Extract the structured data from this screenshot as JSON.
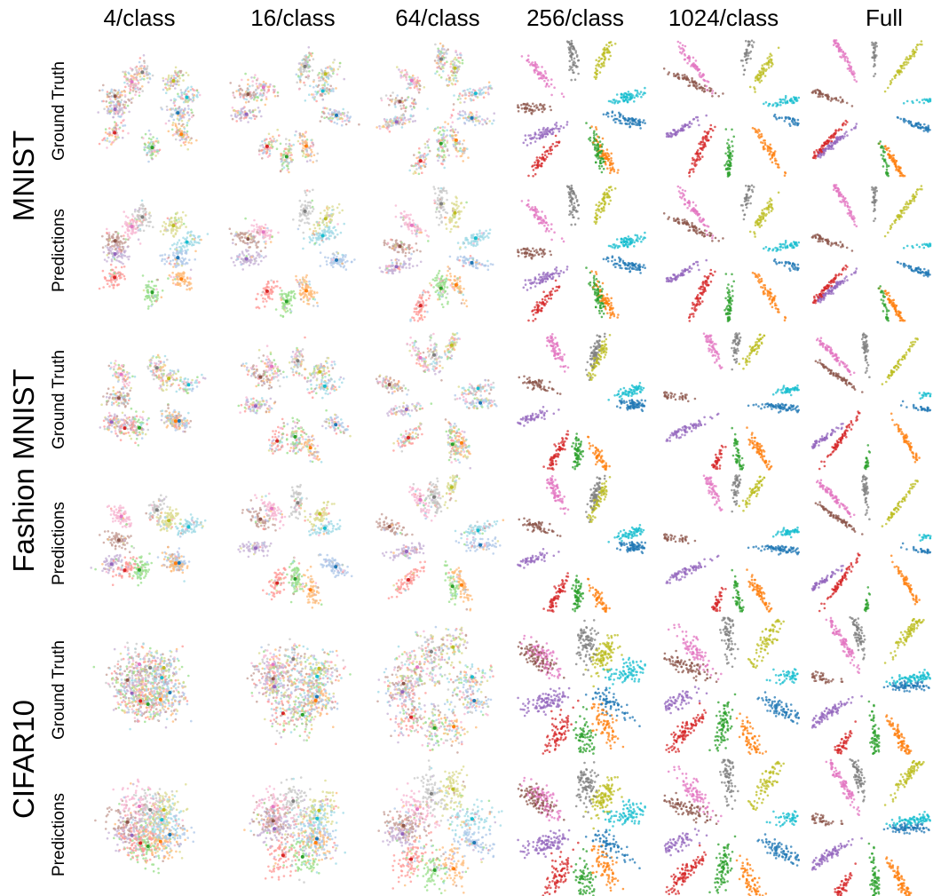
{
  "figure": {
    "columns": [
      "4/class",
      "16/class",
      "64/class",
      "256/class",
      "1024/class",
      "Full"
    ],
    "row_labels": [
      "Ground Truth",
      "Predictions"
    ],
    "datasets": [
      "MNIST",
      "Fashion MNIST",
      "CIFAR10"
    ]
  },
  "colors": {
    "palette": [
      "#1f77b4",
      "#ff7f0e",
      "#2ca02c",
      "#d62728",
      "#9467bd",
      "#8c564b",
      "#e377c2",
      "#7f7f7f",
      "#bcbd22",
      "#17becf"
    ],
    "palette_light": [
      "#aec7e8",
      "#ffbb78",
      "#98df8a",
      "#ff9896",
      "#c5b0d5",
      "#c49c94",
      "#f7b6d2",
      "#c7c7c7",
      "#dbdb8d",
      "#9edae5"
    ]
  },
  "chart_data": {
    "type": "scatter",
    "description_grid": "3 datasets x 2 rows (Ground Truth, Predictions) x 6 label budgets; each panel is a 2D embedding scatter of points colored by one of 10 classes",
    "grid": {
      "rows": 6,
      "cols": 6
    },
    "num_classes": 10,
    "panels": [
      {
        "dataset": "MNIST",
        "row": "Ground Truth",
        "column": "4/class",
        "seed": 11
      },
      {
        "dataset": "MNIST",
        "row": "Ground Truth",
        "column": "16/class",
        "seed": 12
      },
      {
        "dataset": "MNIST",
        "row": "Ground Truth",
        "column": "64/class",
        "seed": 13
      },
      {
        "dataset": "MNIST",
        "row": "Ground Truth",
        "column": "256/class",
        "seed": 14
      },
      {
        "dataset": "MNIST",
        "row": "Ground Truth",
        "column": "1024/class",
        "seed": 15
      },
      {
        "dataset": "MNIST",
        "row": "Ground Truth",
        "column": "Full",
        "seed": 16
      },
      {
        "dataset": "MNIST",
        "row": "Predictions",
        "column": "4/class",
        "seed": 11
      },
      {
        "dataset": "MNIST",
        "row": "Predictions",
        "column": "16/class",
        "seed": 12
      },
      {
        "dataset": "MNIST",
        "row": "Predictions",
        "column": "64/class",
        "seed": 13
      },
      {
        "dataset": "MNIST",
        "row": "Predictions",
        "column": "256/class",
        "seed": 14
      },
      {
        "dataset": "MNIST",
        "row": "Predictions",
        "column": "1024/class",
        "seed": 15
      },
      {
        "dataset": "MNIST",
        "row": "Predictions",
        "column": "Full",
        "seed": 16
      },
      {
        "dataset": "Fashion MNIST",
        "row": "Ground Truth",
        "column": "4/class",
        "seed": 21
      },
      {
        "dataset": "Fashion MNIST",
        "row": "Ground Truth",
        "column": "16/class",
        "seed": 22
      },
      {
        "dataset": "Fashion MNIST",
        "row": "Ground Truth",
        "column": "64/class",
        "seed": 23
      },
      {
        "dataset": "Fashion MNIST",
        "row": "Ground Truth",
        "column": "256/class",
        "seed": 24
      },
      {
        "dataset": "Fashion MNIST",
        "row": "Ground Truth",
        "column": "1024/class",
        "seed": 25
      },
      {
        "dataset": "Fashion MNIST",
        "row": "Ground Truth",
        "column": "Full",
        "seed": 26
      },
      {
        "dataset": "Fashion MNIST",
        "row": "Predictions",
        "column": "4/class",
        "seed": 21
      },
      {
        "dataset": "Fashion MNIST",
        "row": "Predictions",
        "column": "16/class",
        "seed": 22
      },
      {
        "dataset": "Fashion MNIST",
        "row": "Predictions",
        "column": "64/class",
        "seed": 23
      },
      {
        "dataset": "Fashion MNIST",
        "row": "Predictions",
        "column": "256/class",
        "seed": 24
      },
      {
        "dataset": "Fashion MNIST",
        "row": "Predictions",
        "column": "1024/class",
        "seed": 25
      },
      {
        "dataset": "Fashion MNIST",
        "row": "Predictions",
        "column": "Full",
        "seed": 26
      },
      {
        "dataset": "CIFAR10",
        "row": "Ground Truth",
        "column": "4/class",
        "seed": 31
      },
      {
        "dataset": "CIFAR10",
        "row": "Ground Truth",
        "column": "16/class",
        "seed": 32
      },
      {
        "dataset": "CIFAR10",
        "row": "Ground Truth",
        "column": "64/class",
        "seed": 33
      },
      {
        "dataset": "CIFAR10",
        "row": "Ground Truth",
        "column": "256/class",
        "seed": 34
      },
      {
        "dataset": "CIFAR10",
        "row": "Ground Truth",
        "column": "1024/class",
        "seed": 35
      },
      {
        "dataset": "CIFAR10",
        "row": "Ground Truth",
        "column": "Full",
        "seed": 36
      },
      {
        "dataset": "CIFAR10",
        "row": "Predictions",
        "column": "4/class",
        "seed": 31
      },
      {
        "dataset": "CIFAR10",
        "row": "Predictions",
        "column": "16/class",
        "seed": 32
      },
      {
        "dataset": "CIFAR10",
        "row": "Predictions",
        "column": "64/class",
        "seed": 33
      },
      {
        "dataset": "CIFAR10",
        "row": "Predictions",
        "column": "256/class",
        "seed": 34
      },
      {
        "dataset": "CIFAR10",
        "row": "Predictions",
        "column": "1024/class",
        "seed": 35
      },
      {
        "dataset": "CIFAR10",
        "row": "Predictions",
        "column": "Full",
        "seed": 36
      }
    ],
    "axes_visible": false,
    "grid_lines": false,
    "legend": "none"
  }
}
